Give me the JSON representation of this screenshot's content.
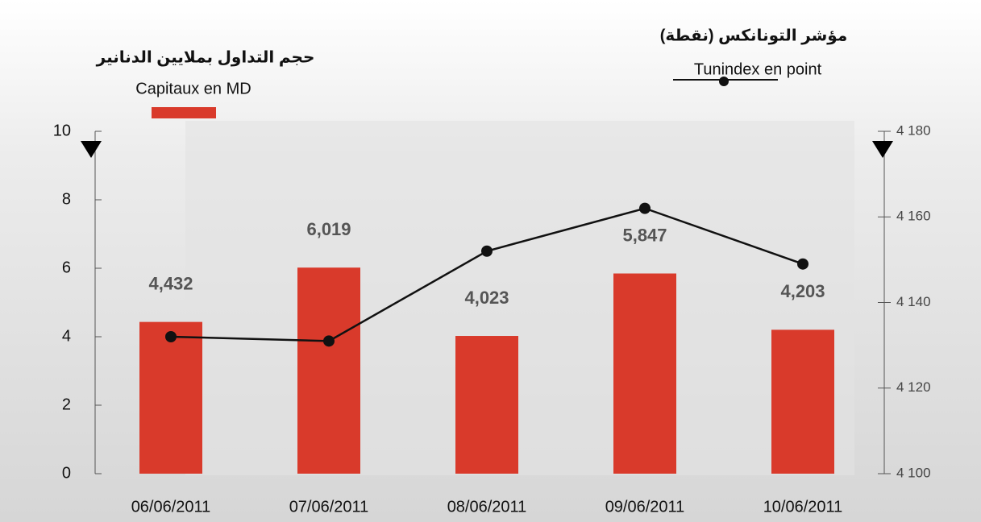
{
  "chart_data": {
    "type": "bar-line",
    "categories": [
      "06/06/2011",
      "07/06/2011",
      "08/06/2011",
      "09/06/2011",
      "10/06/2011"
    ],
    "series": [
      {
        "name": "Capitaux en MD",
        "name_ar": "حجم التداول بملايين الدنانير",
        "type": "bar",
        "color": "#d93a2b",
        "values": [
          4.432,
          6.019,
          4.023,
          5.847,
          4.203
        ],
        "value_labels": [
          "4,432",
          "6,019",
          "4,023",
          "5,847",
          "4,203"
        ]
      },
      {
        "name": "Tunindex en point",
        "name_ar": "مؤشر التونانكس (نقطة)",
        "type": "line",
        "axis": "y2",
        "color": "#111111",
        "values": [
          4132,
          4131,
          4152,
          4162,
          4149
        ]
      }
    ],
    "ylim": [
      0,
      10
    ],
    "yticks": [
      0,
      2,
      4,
      6,
      8,
      10
    ],
    "y2lim": [
      4100,
      4180
    ],
    "y2ticks": [
      {
        "value": 4100,
        "label": "4 100"
      },
      {
        "value": 4120,
        "label": "4 120"
      },
      {
        "value": 4140,
        "label": "4 140"
      },
      {
        "value": 4160,
        "label": "4 160"
      },
      {
        "value": 4180,
        "label": "4 180"
      }
    ]
  }
}
